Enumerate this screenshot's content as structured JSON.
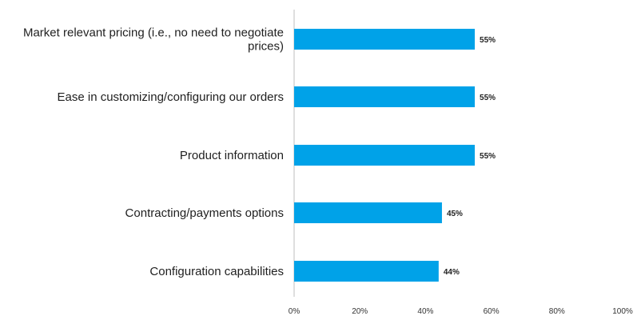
{
  "chart_data": {
    "type": "bar",
    "orientation": "horizontal",
    "categories": [
      [
        "Market relevant pricing (i.e., no need to negotiate",
        "prices)"
      ],
      [
        "Ease in customizing/configuring our orders"
      ],
      [
        "Product information"
      ],
      [
        "Contracting/payments options"
      ],
      [
        "Configuration capabilities"
      ]
    ],
    "values": [
      55,
      55,
      55,
      45,
      44
    ],
    "value_labels": [
      "55%",
      "55%",
      "55%",
      "45%",
      "44%"
    ],
    "xlim": [
      0,
      100
    ],
    "x_ticks": [
      0,
      20,
      40,
      60,
      80,
      100
    ],
    "x_tick_labels": [
      "0%",
      "20%",
      "40%",
      "60%",
      "80%",
      "100%"
    ],
    "title": "",
    "xlabel": "",
    "ylabel": "",
    "grid": false,
    "legend": "none",
    "bar_color": "#00a2e8",
    "axis_color": "#bfbfbf"
  }
}
